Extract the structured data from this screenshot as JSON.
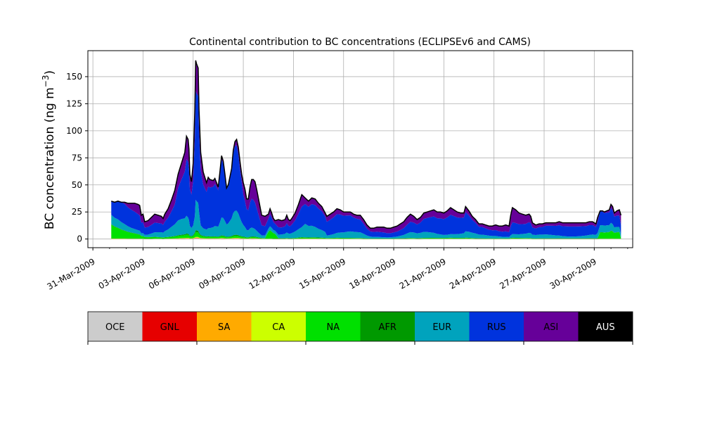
{
  "chart_data": {
    "type": "area",
    "stacked": true,
    "title": "Continental contribution to BC concentrations (ECLIPSEv6 and CAMS)",
    "xlabel": "",
    "ylabel": "BC concentration (ng m",
    "ylabel_superscript": "−3",
    "ylabel_suffix": ")",
    "xlim": [
      -0.3,
      32.3
    ],
    "ylim": [
      -8,
      174
    ],
    "yticks": [
      0,
      25,
      50,
      75,
      100,
      125,
      150
    ],
    "xticks": [
      0,
      3,
      6,
      9,
      12,
      15,
      18,
      21,
      24,
      27,
      30
    ],
    "xtick_labels": [
      "31-Mar-2009",
      "03-Apr-2009",
      "06-Apr-2009",
      "09-Apr-2009",
      "12-Apr-2009",
      "15-Apr-2009",
      "18-Apr-2009",
      "21-Apr-2009",
      "24-Apr-2009",
      "27-Apr-2009",
      "30-Apr-2009"
    ],
    "x_unit": "days since 31-Mar-2009",
    "grid": true,
    "total_line_color": "#000000",
    "series_order": [
      "OCE",
      "GNL",
      "SA",
      "CA",
      "NA",
      "AFR",
      "EUR",
      "RUS",
      "ASI",
      "AUS"
    ],
    "series_colors": {
      "OCE": "#cccccc",
      "GNL": "#e60000",
      "SA": "#ffaa00",
      "CA": "#ccff00",
      "NA": "#00e000",
      "AFR": "#009900",
      "EUR": "#00a3bd",
      "RUS": "#0033dd",
      "ASI": "#660099",
      "AUS": "#000000"
    },
    "total_points": [
      [
        1.1,
        35
      ],
      [
        1.3,
        34
      ],
      [
        1.5,
        35
      ],
      [
        1.7,
        34
      ],
      [
        1.9,
        34
      ],
      [
        2.1,
        33
      ],
      [
        2.3,
        33
      ],
      [
        2.5,
        33
      ],
      [
        2.7,
        32
      ],
      [
        2.8,
        31
      ],
      [
        2.9,
        22
      ],
      [
        3.0,
        23
      ],
      [
        3.1,
        16
      ],
      [
        3.3,
        17
      ],
      [
        3.5,
        20
      ],
      [
        3.7,
        23
      ],
      [
        3.9,
        22
      ],
      [
        4.1,
        21
      ],
      [
        4.2,
        19
      ],
      [
        4.3,
        23
      ],
      [
        4.5,
        28
      ],
      [
        4.7,
        36
      ],
      [
        4.9,
        45
      ],
      [
        5.1,
        60
      ],
      [
        5.3,
        70
      ],
      [
        5.5,
        80
      ],
      [
        5.6,
        95
      ],
      [
        5.7,
        92
      ],
      [
        5.75,
        83
      ],
      [
        5.8,
        60
      ],
      [
        5.9,
        53
      ],
      [
        6.0,
        70
      ],
      [
        6.1,
        120
      ],
      [
        6.15,
        165
      ],
      [
        6.2,
        162
      ],
      [
        6.3,
        158
      ],
      [
        6.35,
        120
      ],
      [
        6.45,
        80
      ],
      [
        6.6,
        62
      ],
      [
        6.8,
        52
      ],
      [
        6.9,
        57
      ],
      [
        7.0,
        55
      ],
      [
        7.2,
        54
      ],
      [
        7.3,
        56
      ],
      [
        7.4,
        52
      ],
      [
        7.5,
        48
      ],
      [
        7.6,
        62
      ],
      [
        7.7,
        77
      ],
      [
        7.8,
        72
      ],
      [
        7.9,
        60
      ],
      [
        8.0,
        47
      ],
      [
        8.1,
        50
      ],
      [
        8.3,
        65
      ],
      [
        8.4,
        82
      ],
      [
        8.5,
        90
      ],
      [
        8.6,
        92
      ],
      [
        8.7,
        85
      ],
      [
        8.8,
        72
      ],
      [
        8.9,
        60
      ],
      [
        9.0,
        52
      ],
      [
        9.1,
        46
      ],
      [
        9.2,
        37
      ],
      [
        9.3,
        37
      ],
      [
        9.4,
        48
      ],
      [
        9.5,
        55
      ],
      [
        9.6,
        55
      ],
      [
        9.7,
        53
      ],
      [
        9.8,
        46
      ],
      [
        9.9,
        38
      ],
      [
        10.0,
        30
      ],
      [
        10.1,
        22
      ],
      [
        10.3,
        21
      ],
      [
        10.5,
        23
      ],
      [
        10.6,
        28
      ],
      [
        10.7,
        24
      ],
      [
        10.8,
        19
      ],
      [
        10.9,
        17
      ],
      [
        11.1,
        18
      ],
      [
        11.3,
        17
      ],
      [
        11.5,
        18
      ],
      [
        11.6,
        22
      ],
      [
        11.7,
        18
      ],
      [
        11.8,
        17
      ],
      [
        11.9,
        19
      ],
      [
        12.1,
        24
      ],
      [
        12.3,
        32
      ],
      [
        12.5,
        41
      ],
      [
        12.7,
        38
      ],
      [
        12.9,
        35
      ],
      [
        13.1,
        38
      ],
      [
        13.3,
        37
      ],
      [
        13.5,
        33
      ],
      [
        13.7,
        30
      ],
      [
        13.9,
        24
      ],
      [
        14.0,
        21
      ],
      [
        14.2,
        23
      ],
      [
        14.4,
        25
      ],
      [
        14.6,
        28
      ],
      [
        14.8,
        27
      ],
      [
        15.0,
        25
      ],
      [
        15.2,
        25
      ],
      [
        15.4,
        25
      ],
      [
        15.6,
        23
      ],
      [
        15.8,
        22
      ],
      [
        16.0,
        22
      ],
      [
        16.2,
        18
      ],
      [
        16.4,
        13
      ],
      [
        16.6,
        10
      ],
      [
        16.8,
        10
      ],
      [
        17.0,
        11
      ],
      [
        17.2,
        11
      ],
      [
        17.4,
        11
      ],
      [
        17.6,
        10
      ],
      [
        17.8,
        10
      ],
      [
        18.0,
        11
      ],
      [
        18.2,
        12
      ],
      [
        18.4,
        14
      ],
      [
        18.6,
        16
      ],
      [
        18.8,
        20
      ],
      [
        19.0,
        23
      ],
      [
        19.2,
        21
      ],
      [
        19.4,
        18
      ],
      [
        19.6,
        20
      ],
      [
        19.8,
        24
      ],
      [
        20.0,
        25
      ],
      [
        20.2,
        26
      ],
      [
        20.4,
        27
      ],
      [
        20.6,
        25
      ],
      [
        20.8,
        25
      ],
      [
        21.0,
        24
      ],
      [
        21.2,
        26
      ],
      [
        21.4,
        29
      ],
      [
        21.6,
        27
      ],
      [
        21.8,
        25
      ],
      [
        22.0,
        24
      ],
      [
        22.2,
        24
      ],
      [
        22.3,
        30
      ],
      [
        22.5,
        26
      ],
      [
        22.7,
        21
      ],
      [
        22.9,
        18
      ],
      [
        23.1,
        14
      ],
      [
        23.3,
        14
      ],
      [
        23.5,
        13
      ],
      [
        23.7,
        12
      ],
      [
        23.9,
        12
      ],
      [
        24.1,
        13
      ],
      [
        24.3,
        12
      ],
      [
        24.5,
        12
      ],
      [
        24.7,
        13
      ],
      [
        24.9,
        12
      ],
      [
        25.0,
        22
      ],
      [
        25.1,
        29
      ],
      [
        25.3,
        27
      ],
      [
        25.5,
        24
      ],
      [
        25.7,
        23
      ],
      [
        25.9,
        22
      ],
      [
        26.1,
        23
      ],
      [
        26.2,
        21
      ],
      [
        26.3,
        15
      ],
      [
        26.5,
        13
      ],
      [
        26.7,
        14
      ],
      [
        26.9,
        14
      ],
      [
        27.1,
        15
      ],
      [
        27.3,
        15
      ],
      [
        27.5,
        15
      ],
      [
        27.7,
        15
      ],
      [
        27.9,
        16
      ],
      [
        28.1,
        15
      ],
      [
        28.3,
        15
      ],
      [
        28.5,
        15
      ],
      [
        28.7,
        15
      ],
      [
        28.9,
        15
      ],
      [
        29.1,
        15
      ],
      [
        29.3,
        15
      ],
      [
        29.5,
        15
      ],
      [
        29.7,
        16
      ],
      [
        29.9,
        16
      ],
      [
        30.1,
        14
      ],
      [
        30.2,
        20
      ],
      [
        30.35,
        26
      ],
      [
        30.5,
        26
      ],
      [
        30.6,
        25
      ],
      [
        30.75,
        26
      ],
      [
        30.9,
        27
      ],
      [
        31.0,
        32
      ],
      [
        31.1,
        30
      ],
      [
        31.2,
        24
      ],
      [
        31.35,
        26
      ],
      [
        31.5,
        27
      ],
      [
        31.6,
        22
      ]
    ],
    "legend_labels": [
      "OCE",
      "GNL",
      "SA",
      "CA",
      "NA",
      "AFR",
      "EUR",
      "RUS",
      "ASI",
      "AUS"
    ],
    "legend_placement": "bottom colorbar"
  }
}
